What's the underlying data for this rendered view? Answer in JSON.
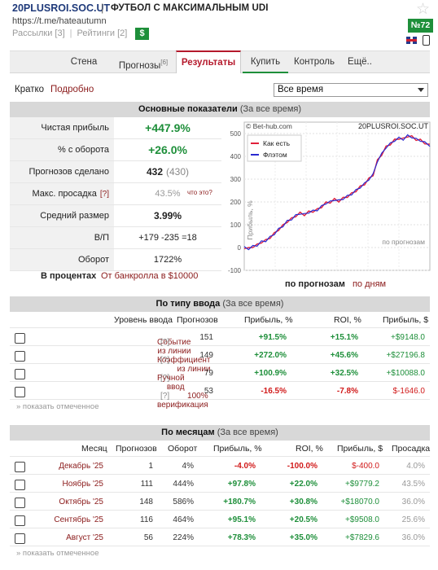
{
  "header": {
    "name": "20PLUSROI.SOC.UT",
    "separator": "|",
    "description": "ФУТБОЛ С МАКСИМАЛЬНЫМ UDI",
    "url": "https://t.me/hateautumn",
    "mailing": "Рассылки [3]",
    "ratings": "Рейтинги [2]",
    "dollar": "$",
    "rank": "№72"
  },
  "nav": {
    "tabs": [
      {
        "label": "Стена",
        "sup": ""
      },
      {
        "label": "Прогнозы",
        "sup": "[6]"
      },
      {
        "label": "Результаты",
        "sup": ""
      },
      {
        "label": "Купить",
        "sup": ""
      },
      {
        "label": "Контроль",
        "sup": ""
      },
      {
        "label": "Ещё..",
        "sup": ""
      }
    ]
  },
  "subbar": {
    "brief": "Кратко",
    "detailed": "Подробно",
    "period": "Все время"
  },
  "main": {
    "title": "Основные показатели",
    "period": "(За все время)",
    "rows": {
      "profit_label": "Чистая прибыль",
      "profit": "+447.9%",
      "turnover_label": "% с оборота",
      "turnover": "+26.0%",
      "tips_label": "Прогнозов сделано",
      "tips": "432",
      "tips_total": "(430)",
      "dd_label": "Макс. просадка",
      "dd_q": "[?]",
      "dd": "43.5%",
      "dd_note": "что это?",
      "avg_label": "Средний размер",
      "avg": "3.99%",
      "wl_label": "В/П",
      "wl_win": "+179",
      "wl_lose": "-235",
      "wl_draw": "=18",
      "volume_label": "Оборот",
      "volume": "1722%"
    },
    "in_percent": "В процентах",
    "from_bank": "От банкролла в $10000"
  },
  "chart_data": {
    "type": "line",
    "title": "20PLUSROI.SOC.UT",
    "source": "© Bet-hub.com",
    "ylabel": "Прибыль, %",
    "xlabel": "по прогнозам",
    "ylim": [
      -100,
      550
    ],
    "yticks": [
      -100,
      0,
      100,
      200,
      300,
      400,
      500
    ],
    "legend": "top-left",
    "series": [
      {
        "name": "Как есть",
        "color": "#e0203a"
      },
      {
        "name": "Флэтом",
        "color": "#2a2ad0"
      }
    ],
    "x": [
      0,
      10,
      20,
      30,
      40,
      50,
      60,
      70,
      80,
      90,
      100,
      110,
      120,
      130,
      140,
      150,
      160,
      170,
      180,
      190,
      200,
      210,
      220,
      230,
      240,
      250,
      260,
      270,
      280,
      290,
      300,
      310,
      320,
      330,
      340,
      350,
      360,
      370,
      380,
      390,
      400,
      410,
      420,
      432
    ],
    "values": [
      0,
      -5,
      5,
      10,
      25,
      30,
      45,
      60,
      80,
      95,
      115,
      125,
      140,
      150,
      145,
      155,
      160,
      165,
      180,
      195,
      200,
      210,
      205,
      215,
      225,
      235,
      250,
      265,
      280,
      300,
      320,
      380,
      410,
      440,
      455,
      470,
      480,
      475,
      490,
      485,
      475,
      470,
      460,
      448
    ],
    "modes": {
      "by_tips": "по прогнозам",
      "by_days": "по дням"
    }
  },
  "by_type": {
    "title": "По типу ввода",
    "period": "(За все время)",
    "columns": [
      "Уровень ввода",
      "Прогнозов",
      "Прибыль, %",
      "ROI, %",
      "Прибыль, $"
    ],
    "rows": [
      {
        "name": "Событие из линии",
        "q": "[?]",
        "tips": "151",
        "profit": "+91.5%",
        "roi": "+15.1%",
        "usd": "+$9148.0"
      },
      {
        "name": "Коэффициент из линии",
        "q": "[?]",
        "tips": "149",
        "profit": "+272.0%",
        "roi": "+45.6%",
        "usd": "+$27196.8"
      },
      {
        "name": "Ручной ввод",
        "q": "[?]",
        "tips": "79",
        "profit": "+100.9%",
        "roi": "+32.5%",
        "usd": "+$10088.0"
      },
      {
        "name": "100% верификация",
        "q": "[?]",
        "tips": "53",
        "profit": "-16.5%",
        "roi": "-7.8%",
        "usd": "$-1646.0"
      }
    ],
    "show_marked": "» показать отмеченное"
  },
  "by_month": {
    "title": "По месяцам",
    "period": "(За все время)",
    "columns": [
      "Месяц",
      "Прогнозов",
      "Оборот",
      "Прибыль, %",
      "ROI, %",
      "Прибыль, $",
      "Просадка"
    ],
    "rows": [
      {
        "month": "Декабрь '25",
        "tips": "1",
        "turnover": "4%",
        "profit": "-4.0%",
        "roi": "-100.0%",
        "usd": "$-400.0",
        "dd": "4.0%"
      },
      {
        "month": "Ноябрь '25",
        "tips": "111",
        "turnover": "444%",
        "profit": "+97.8%",
        "roi": "+22.0%",
        "usd": "+$9779.2",
        "dd": "43.5%"
      },
      {
        "month": "Октябрь '25",
        "tips": "148",
        "turnover": "586%",
        "profit": "+180.7%",
        "roi": "+30.8%",
        "usd": "+$18070.0",
        "dd": "36.0%"
      },
      {
        "month": "Сентябрь '25",
        "tips": "116",
        "turnover": "464%",
        "profit": "+95.1%",
        "roi": "+20.5%",
        "usd": "+$9508.0",
        "dd": "25.6%"
      },
      {
        "month": "Август '25",
        "tips": "56",
        "turnover": "224%",
        "profit": "+78.3%",
        "roi": "+35.0%",
        "usd": "+$7829.6",
        "dd": "36.0%"
      }
    ],
    "show_marked": "» показать отмеченное"
  }
}
